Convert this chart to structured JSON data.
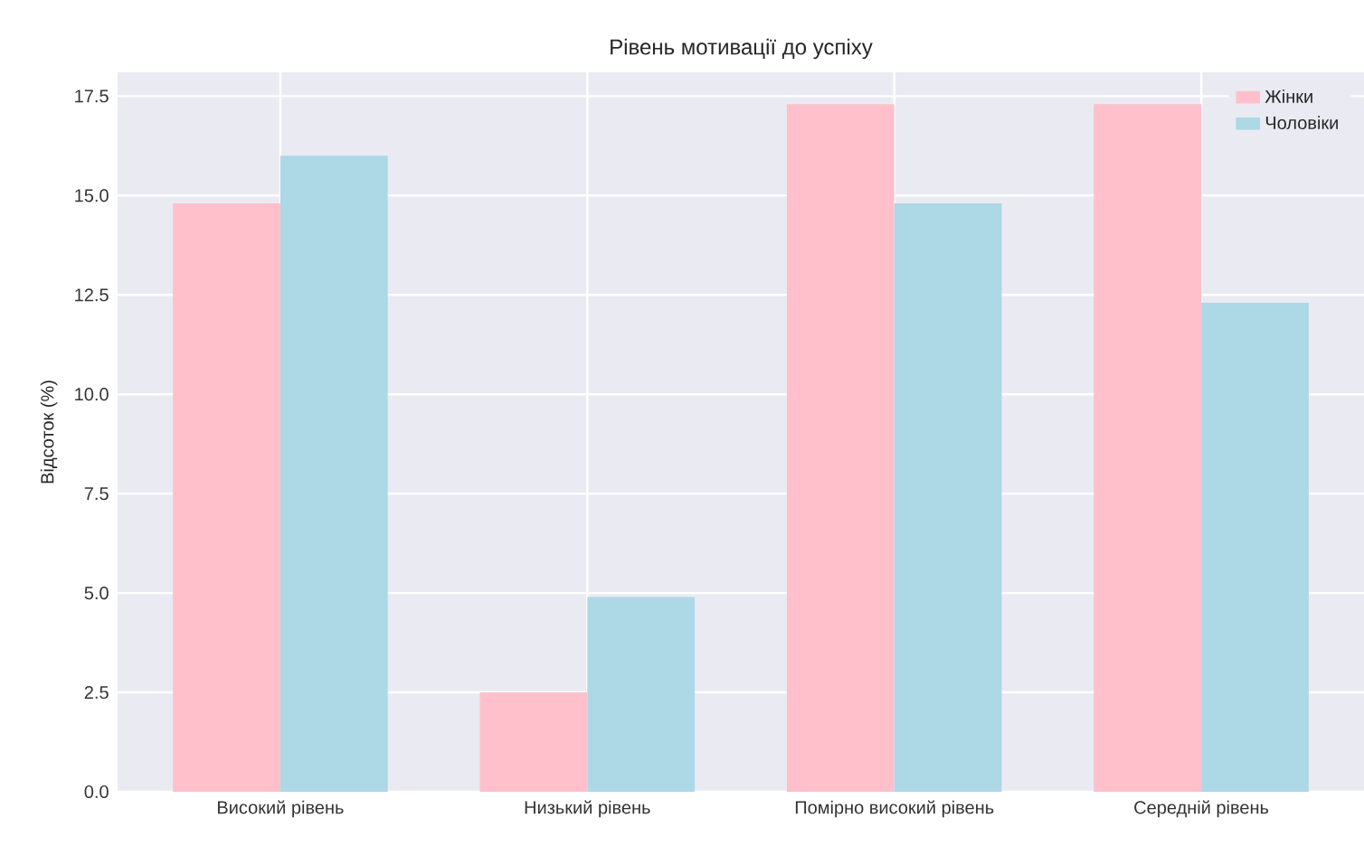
{
  "chart_data": {
    "type": "bar",
    "title": "Рівень мотивації до успіху",
    "ylabel": "Відсоток (%)",
    "categories": [
      "Високий рівень",
      "Низький рівень",
      "Помірно високий рівень",
      "Середній рівень"
    ],
    "series": [
      {
        "name": "Жінки",
        "color": "#ffc0cb",
        "values": [
          14.8,
          2.5,
          17.3,
          17.3
        ]
      },
      {
        "name": "Чоловіки",
        "color": "#add8e6",
        "values": [
          16.0,
          4.9,
          14.8,
          12.3
        ]
      }
    ],
    "ylim": [
      0,
      18.1
    ],
    "yticks": [
      {
        "value": 0,
        "label": "0.0"
      },
      {
        "value": 2.5,
        "label": "2.5"
      },
      {
        "value": 5,
        "label": "5.0"
      },
      {
        "value": 7.5,
        "label": "7.5"
      },
      {
        "value": 10,
        "label": "10.0"
      },
      {
        "value": 12.5,
        "label": "12.5"
      },
      {
        "value": 15,
        "label": "15.0"
      },
      {
        "value": 17.5,
        "label": "17.5"
      }
    ],
    "grid": true,
    "legend": "top right"
  }
}
